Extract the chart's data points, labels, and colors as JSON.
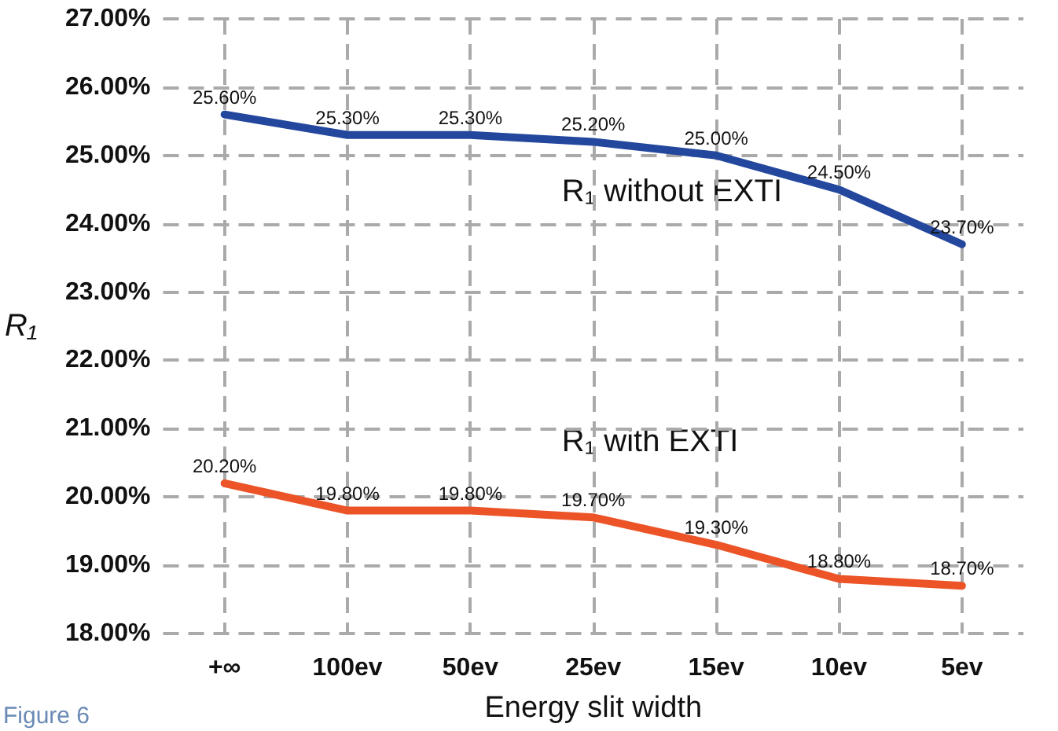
{
  "chart_data": {
    "type": "line",
    "xlabel": "Energy slit width",
    "ylabel": "R₁",
    "categories": [
      "+∞",
      "100ev",
      "50ev",
      "25ev",
      "15ev",
      "10ev",
      "5ev"
    ],
    "series": [
      {
        "name": "R₁ without EXTI",
        "color": "#24479e",
        "values": [
          25.6,
          25.3,
          25.3,
          25.2,
          25.0,
          24.5,
          23.7
        ],
        "value_labels": [
          "25.60%",
          "25.30%",
          "25.30%",
          "25.20%",
          "25.00%",
          "24.50%",
          "23.70%"
        ]
      },
      {
        "name": "R₁ with EXTI",
        "color": "#ec5428",
        "values": [
          20.2,
          19.8,
          19.8,
          19.7,
          19.3,
          18.8,
          18.7
        ],
        "value_labels": [
          "20.20%",
          "19.80%",
          "19.80%",
          "19.70%",
          "19.30%",
          "18.80%",
          "18.70%"
        ]
      }
    ],
    "ylim": [
      18,
      27
    ],
    "yticks": [
      {
        "value": 18,
        "label": "18.00%"
      },
      {
        "value": 19,
        "label": "19.00%"
      },
      {
        "value": 20,
        "label": "20.00%"
      },
      {
        "value": 21,
        "label": "21.00%"
      },
      {
        "value": 22,
        "label": "22.00%"
      },
      {
        "value": 23,
        "label": "23.00%"
      },
      {
        "value": 24,
        "label": "24.00%"
      },
      {
        "value": 25,
        "label": "25.00%"
      },
      {
        "value": 26,
        "label": "26.00%"
      },
      {
        "value": 27,
        "label": "27.00%"
      }
    ],
    "grid": true,
    "marker": "none",
    "line_style": "solid",
    "annotations": [
      "Figure 6"
    ]
  }
}
